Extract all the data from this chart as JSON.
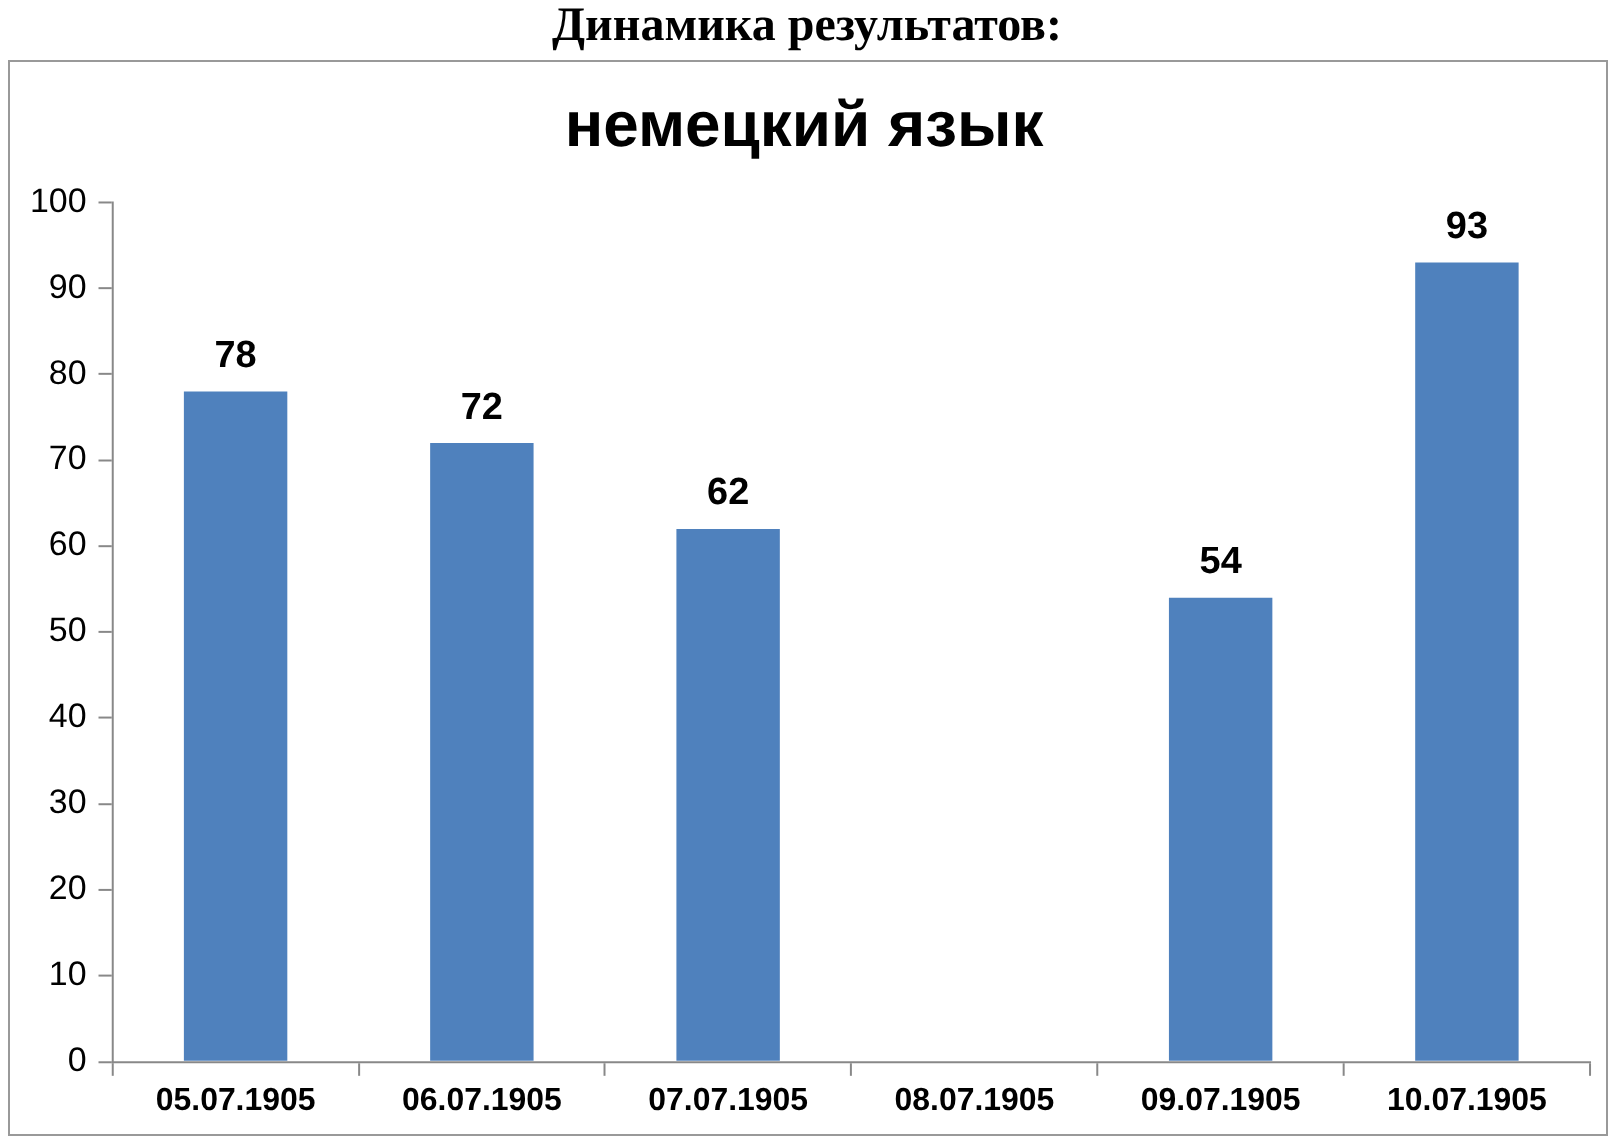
{
  "chart_data": {
    "type": "bar",
    "title": "немецкий язык",
    "annotations": [
      "Динамика результатов:"
    ],
    "categories": [
      "05.07.1905",
      "06.07.1905",
      "07.07.1905",
      "08.07.1905",
      "09.07.1905",
      "10.07.1905"
    ],
    "values": [
      78,
      72,
      62,
      null,
      54,
      93
    ],
    "color": "#4f81bd",
    "ylim": [
      0,
      100
    ],
    "yticks": [
      0,
      10,
      20,
      30,
      40,
      50,
      60,
      70,
      80,
      90,
      100
    ],
    "grid": false,
    "legend": false,
    "data_labels": true
  }
}
